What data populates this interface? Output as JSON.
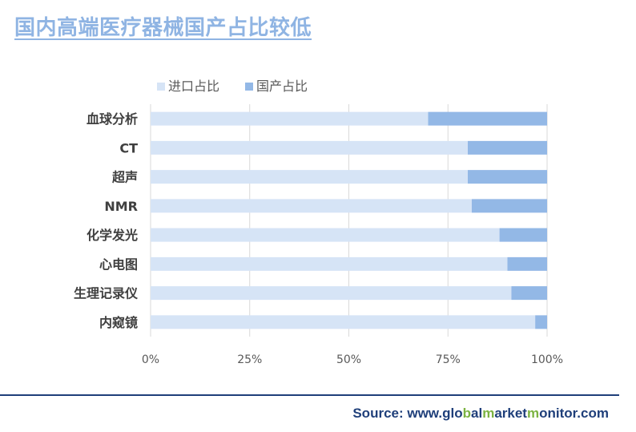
{
  "title": "国内高端医疗器械国产占比较低",
  "source": {
    "prefix": "Source: www.glo",
    "hl1": "bal",
    "mid1": "",
    "b": "",
    "text": "Source: www.globalmarketmonitor.com",
    "parts": [
      "Source: www.glo",
      "b",
      "al",
      "m",
      "arket",
      "m",
      "onitor.com"
    ]
  },
  "colors": {
    "import": "#d6e4f6",
    "domestic": "#93b8e6",
    "grid": "#d9d9d9",
    "title": "#8fb4e3",
    "source": "#1f3f7a",
    "source_highlight": "#7cb342"
  },
  "chart_data": {
    "type": "bar",
    "orientation": "horizontal",
    "stacked": "percent",
    "categories": [
      "血球分析",
      "CT",
      "超声",
      "NMR",
      "化学发光",
      "心电图",
      "生理记录仪",
      "内窥镜"
    ],
    "series": [
      {
        "name": "进口占比",
        "values": [
          70,
          80,
          80,
          81,
          88,
          90,
          91,
          97
        ]
      },
      {
        "name": "国产占比",
        "values": [
          30,
          20,
          20,
          19,
          12,
          10,
          9,
          3
        ]
      }
    ],
    "xlim": [
      0,
      100
    ],
    "xticks": [
      "0%",
      "25%",
      "50%",
      "75%",
      "100%"
    ],
    "xtick_values": [
      0,
      25,
      50,
      75,
      100
    ],
    "grid": true,
    "legend": "top-left"
  }
}
